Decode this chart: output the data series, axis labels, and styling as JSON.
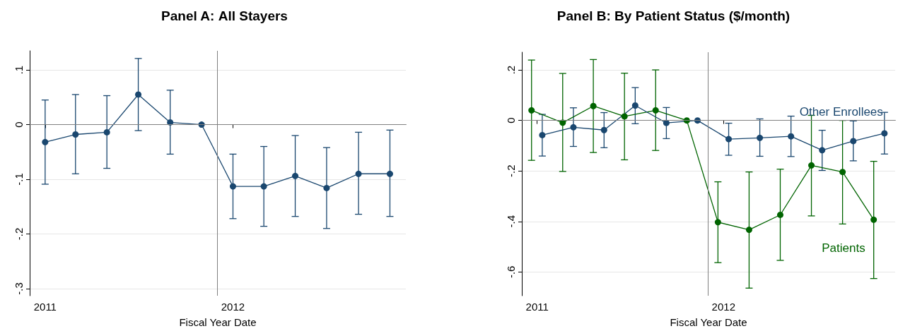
{
  "chart_data": [
    {
      "type": "line",
      "title": "Panel A: All Stayers",
      "xlabel": "Fiscal Year Date",
      "xlim": [
        "2010-12-02",
        "2012-12-02"
      ],
      "xticks": [
        "2011",
        "2012"
      ],
      "ylim": [
        -0.313,
        0.135
      ],
      "yticks": [
        {
          "value": 0.1,
          "label": ".1"
        },
        0,
        {
          "value": -0.1,
          "label": "-.1"
        },
        {
          "value": -0.2,
          "label": "-.2"
        },
        {
          "value": -0.3,
          "label": "-.3"
        }
      ],
      "grid": "y",
      "legend": false,
      "marker": "circle",
      "line_style": "solid",
      "ref_lines": [
        {
          "axis": "y",
          "value": 0,
          "color": "#808080"
        },
        {
          "axis": "x",
          "value": "2011-12-01",
          "color": "#808080"
        }
      ],
      "series": [
        {
          "color": "#1a476f",
          "x": [
            "2011-01-01",
            "2011-03-01",
            "2011-05-01",
            "2011-07-01",
            "2011-09-01",
            "2011-11-01",
            "2012-01-01",
            "2012-03-01",
            "2012-05-01",
            "2012-07-01",
            "2012-09-01",
            "2012-11-01"
          ],
          "values": [
            -0.032,
            -0.018,
            -0.014,
            0.055,
            0.004,
            0,
            -0.113,
            -0.113,
            -0.094,
            -0.116,
            -0.09,
            -0.09
          ],
          "errors": [
            [
              -0.109,
              0.045
            ],
            [
              -0.09,
              0.055
            ],
            [
              -0.08,
              0.053
            ],
            [
              -0.011,
              0.121
            ],
            [
              -0.054,
              0.063
            ],
            null,
            [
              -0.172,
              -0.054
            ],
            [
              -0.186,
              -0.04
            ],
            [
              -0.168,
              -0.02
            ],
            [
              -0.19,
              -0.042
            ],
            [
              -0.164,
              -0.014
            ],
            [
              -0.168,
              -0.01
            ]
          ]
        }
      ]
    },
    {
      "type": "line",
      "title": "Panel B: By Patient Status ($/month)",
      "xlabel": "Fiscal Year Date",
      "xlim": [
        "2010-12-02",
        "2012-12-02"
      ],
      "xticks": [
        "2011",
        "2012"
      ],
      "ylim": [
        -0.694,
        0.27
      ],
      "yticks": [
        {
          "value": 0.2,
          "label": ".2"
        },
        0,
        {
          "value": -0.2,
          "label": "-.2"
        },
        {
          "value": -0.4,
          "label": "-.4"
        },
        {
          "value": -0.6,
          "label": "-.6"
        }
      ],
      "grid": "y",
      "legend": false,
      "marker": "circle",
      "line_style": "solid",
      "ref_lines": [
        {
          "axis": "y",
          "value": 0,
          "color": "#808080"
        },
        {
          "axis": "x",
          "value": "2011-12-01",
          "color": "#808080"
        }
      ],
      "series": [
        {
          "name": "Patients",
          "color": "#006400",
          "x": [
            "2010-12-21",
            "2011-02-20",
            "2011-04-21",
            "2011-06-21",
            "2011-08-21",
            "2011-10-21",
            "2011-12-21",
            "2012-02-20",
            "2012-04-21",
            "2012-06-21",
            "2012-08-21",
            "2012-10-21"
          ],
          "values": [
            0.04,
            -0.009,
            0.057,
            0.016,
            0.04,
            0,
            -0.403,
            -0.433,
            -0.374,
            -0.178,
            -0.204,
            -0.393
          ],
          "errors": [
            [
              -0.158,
              0.239
            ],
            [
              -0.202,
              0.186
            ],
            [
              -0.127,
              0.241
            ],
            [
              -0.156,
              0.187
            ],
            [
              -0.119,
              0.2
            ],
            null,
            [
              -0.563,
              -0.243
            ],
            [
              -0.664,
              -0.204
            ],
            [
              -0.554,
              -0.193
            ],
            [
              -0.378,
              0.02
            ],
            [
              -0.41,
              0.0
            ],
            [
              -0.626,
              -0.162
            ]
          ]
        },
        {
          "name": "Other Enrollees",
          "color": "#1a476f",
          "x": [
            "2011-01-11",
            "2011-03-13",
            "2011-05-12",
            "2011-07-12",
            "2011-09-11",
            "2011-11-11",
            "2012-01-11",
            "2012-03-12",
            "2012-05-12",
            "2012-07-12",
            "2012-09-11",
            "2012-11-11"
          ],
          "values": [
            -0.058,
            -0.027,
            -0.038,
            0.059,
            -0.01,
            0,
            -0.074,
            -0.069,
            -0.063,
            -0.118,
            -0.082,
            -0.051
          ],
          "errors": [
            [
              -0.141,
              0.024
            ],
            [
              -0.103,
              0.05
            ],
            [
              -0.108,
              0.031
            ],
            [
              -0.013,
              0.13
            ],
            [
              -0.072,
              0.051
            ],
            null,
            [
              -0.138,
              -0.011
            ],
            [
              -0.142,
              0.006
            ],
            [
              -0.143,
              0.017
            ],
            [
              -0.198,
              -0.039
            ],
            [
              -0.16,
              -0.002
            ],
            [
              -0.133,
              0.032
            ]
          ]
        }
      ]
    }
  ]
}
